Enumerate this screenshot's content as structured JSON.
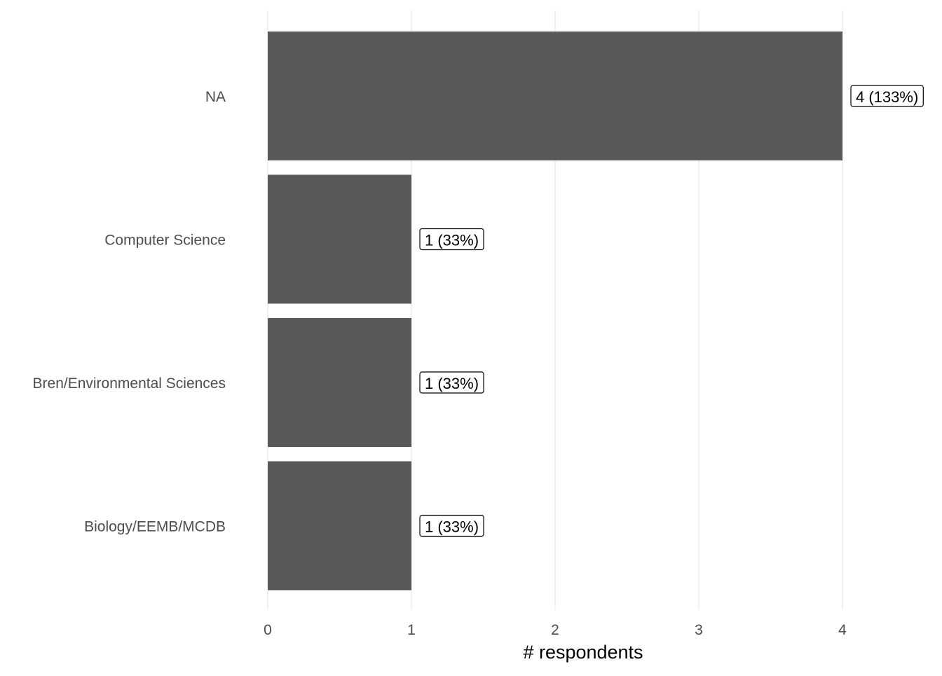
{
  "chart_data": {
    "type": "bar",
    "orientation": "horizontal",
    "title": "",
    "xlabel": "# respondents",
    "ylabel": "",
    "xlim": [
      0,
      4
    ],
    "x_ticks": [
      0,
      1,
      2,
      3,
      4
    ],
    "categories": [
      "NA",
      "Computer Science",
      "Bren/Environmental Sciences",
      "Biology/EEMB/MCDB"
    ],
    "values": [
      4,
      1,
      1,
      1
    ],
    "data_labels": [
      "4 (133%)",
      "1 (33%)",
      "1 (33%)",
      "1 (33%)"
    ],
    "bar_color": "#595959",
    "grid": "vertical major gridlines",
    "legend": "none"
  }
}
